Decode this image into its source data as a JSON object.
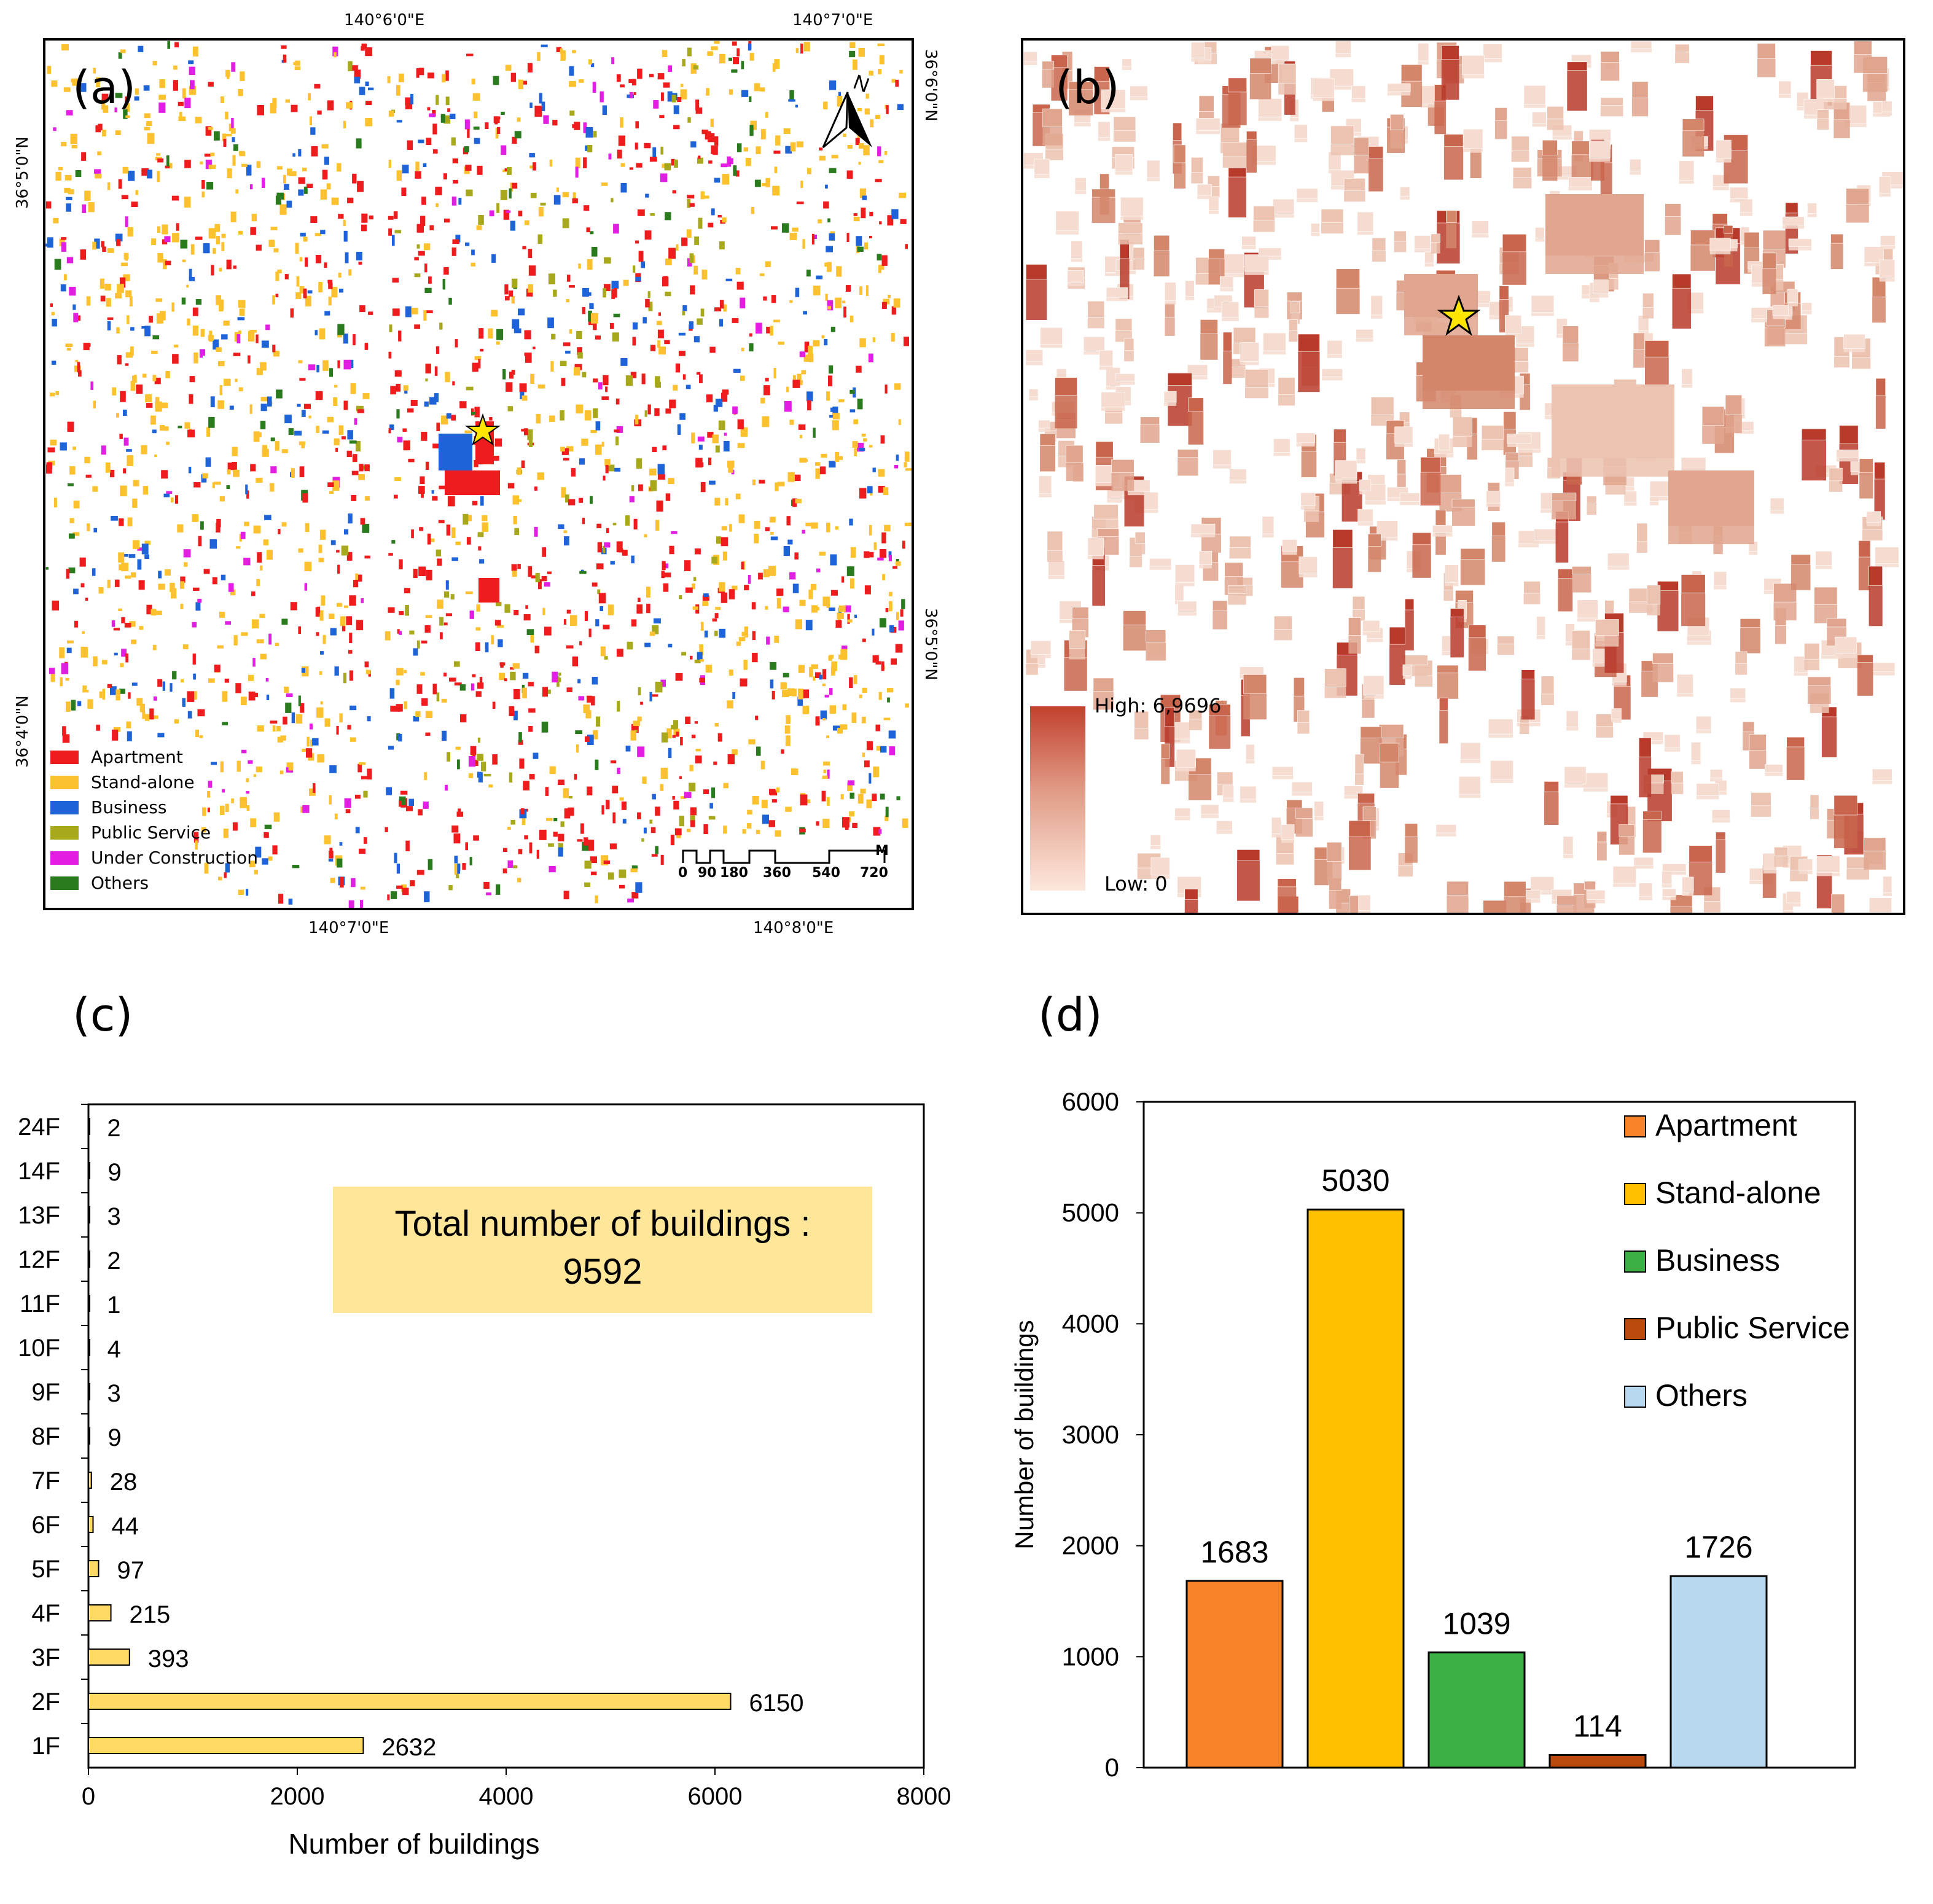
{
  "panel_a": {
    "label": "(a)",
    "coords_top": [
      "140°6'0\"E",
      "140°7'0\"E"
    ],
    "coords_bottom": [
      "140°7'0\"E",
      "140°8'0\"E"
    ],
    "coords_left": [
      "36°5'0\"N",
      "36°4'0\"N"
    ],
    "coords_right": [
      "36°6'0\"N",
      "36°5'0\"N"
    ],
    "north_label": "N",
    "legend": [
      {
        "label": "Apartment",
        "color": "#ee1c1c"
      },
      {
        "label": "Stand-alone",
        "color": "#fcc12e"
      },
      {
        "label": "Business",
        "color": "#1e64d8"
      },
      {
        "label": "Public Service",
        "color": "#a8a81c"
      },
      {
        "label": "Under Construction",
        "color": "#e21ee2"
      },
      {
        "label": "Others",
        "color": "#2a7a1e"
      }
    ],
    "scale_unit": "M",
    "scale_ticks": [
      "0",
      "90",
      "180",
      "360",
      "540",
      "720"
    ]
  },
  "panel_b": {
    "label": "(b)",
    "legend_high": "High: 6,9696",
    "legend_low": "Low: 0"
  },
  "panel_c": {
    "label": "(c)",
    "total_text_line1": "Total number of buildings :",
    "total_text_line2": "9592"
  },
  "panel_d": {
    "label": "(d)"
  },
  "chart_data": [
    {
      "type": "bar",
      "orientation": "horizontal",
      "categories": [
        "1F",
        "2F",
        "3F",
        "4F",
        "5F",
        "6F",
        "7F",
        "8F",
        "9F",
        "10F",
        "11F",
        "12F",
        "13F",
        "14F",
        "24F"
      ],
      "values": [
        2632,
        6150,
        393,
        215,
        97,
        44,
        28,
        9,
        3,
        4,
        1,
        2,
        3,
        9,
        2
      ],
      "xlabel": "Number of buildings",
      "xlim": [
        0,
        8000
      ],
      "xticks": [
        0,
        2000,
        4000,
        6000,
        8000
      ],
      "bar_color": "#ffd966",
      "annotation": "Total number of buildings : 9592",
      "grid": false
    },
    {
      "type": "bar",
      "categories": [
        "Apartment",
        "Stand-alone",
        "Business",
        "Public Service",
        "Others"
      ],
      "values": [
        1683,
        5030,
        1039,
        114,
        1726
      ],
      "colors": [
        "#f8832b",
        "#ffc000",
        "#3cb043",
        "#b84a0e",
        "#b8d8ef"
      ],
      "ylabel": "Number of buildings",
      "ylim": [
        0,
        6000
      ],
      "yticks": [
        0,
        1000,
        2000,
        3000,
        4000,
        5000,
        6000
      ],
      "legend": "top-right",
      "grid": false
    }
  ]
}
